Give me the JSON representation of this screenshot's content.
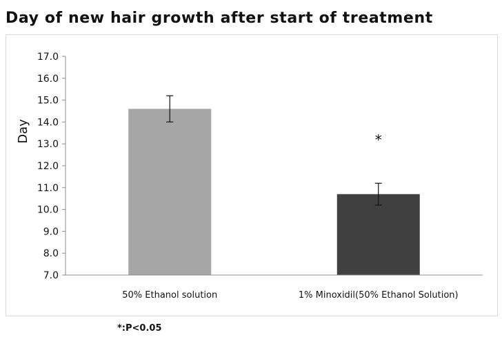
{
  "chart_data": {
    "type": "bar",
    "title": "Day of new hair growth after start of treatment",
    "xlabel": "",
    "ylabel": "Day",
    "ylim": [
      7.0,
      17.0
    ],
    "yticks": [
      "7.0",
      "8.0",
      "9.0",
      "10.0",
      "11.0",
      "12.0",
      "13.0",
      "14.0",
      "15.0",
      "16.0",
      "17.0"
    ],
    "categories": [
      "50% Ethanol  solution",
      "1% Minoxidil(50% Ethanol  Solution)"
    ],
    "values": [
      14.6,
      10.7
    ],
    "errors": [
      0.6,
      0.5
    ],
    "bar_colors": [
      "#a6a6a6",
      "#404040"
    ],
    "annotation": "*",
    "annotation_category": 1,
    "grid": false,
    "legend": "none"
  },
  "footnote": "*:P<0.05"
}
